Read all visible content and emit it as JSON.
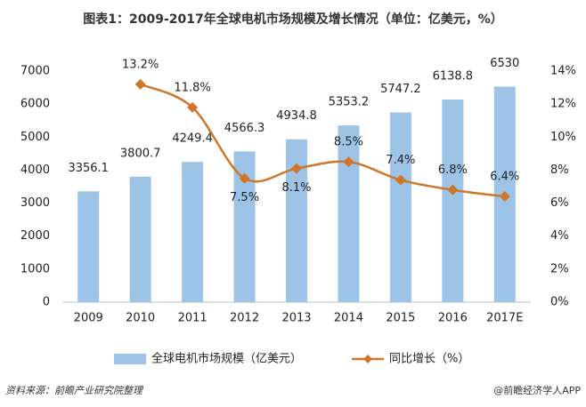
{
  "chart_data": {
    "type": "bar",
    "title": "图表1：2009-2017年全球电机市场规模及增长情况（单位：亿美元，%）",
    "categories": [
      "2009",
      "2010",
      "2011",
      "2012",
      "2013",
      "2014",
      "2015",
      "2016",
      "2017E"
    ],
    "series": [
      {
        "name": "全球电机市场规模（亿美元）",
        "type": "bar",
        "color": "#9dc3e6",
        "values": [
          3356.1,
          3800.7,
          4249.4,
          4566.3,
          4934.8,
          5353.2,
          5747.2,
          6138.8,
          6530
        ]
      },
      {
        "name": "同比增长（%）",
        "type": "line",
        "axis": "y2",
        "color": "#d0762a",
        "values": [
          null,
          13.2,
          11.8,
          7.5,
          8.1,
          8.5,
          7.4,
          6.8,
          6.4
        ],
        "value_labels": [
          null,
          "13.2%",
          "11.8%",
          "7.5%",
          "8.1%",
          "8.5%",
          "7.4%",
          "6.8%",
          "6.4%"
        ]
      }
    ],
    "ylim": [
      0,
      7000
    ],
    "yticks": [
      0,
      1000,
      2000,
      3000,
      4000,
      5000,
      6000,
      7000
    ],
    "y2lim": [
      0,
      14
    ],
    "y2ticks": [
      {
        "value": 0,
        "label": "0%"
      },
      {
        "value": 2,
        "label": "2%"
      },
      {
        "value": 4,
        "label": "4%"
      },
      {
        "value": 6,
        "label": "6%"
      },
      {
        "value": 8,
        "label": "8%"
      },
      {
        "value": 10,
        "label": "10%"
      },
      {
        "value": 12,
        "label": "12%"
      },
      {
        "value": 14,
        "label": "14%"
      }
    ],
    "legend": "bottom",
    "source": "资料来源：前瞻产业研究院整理",
    "footer": "@前瞻经济学人APP"
  }
}
